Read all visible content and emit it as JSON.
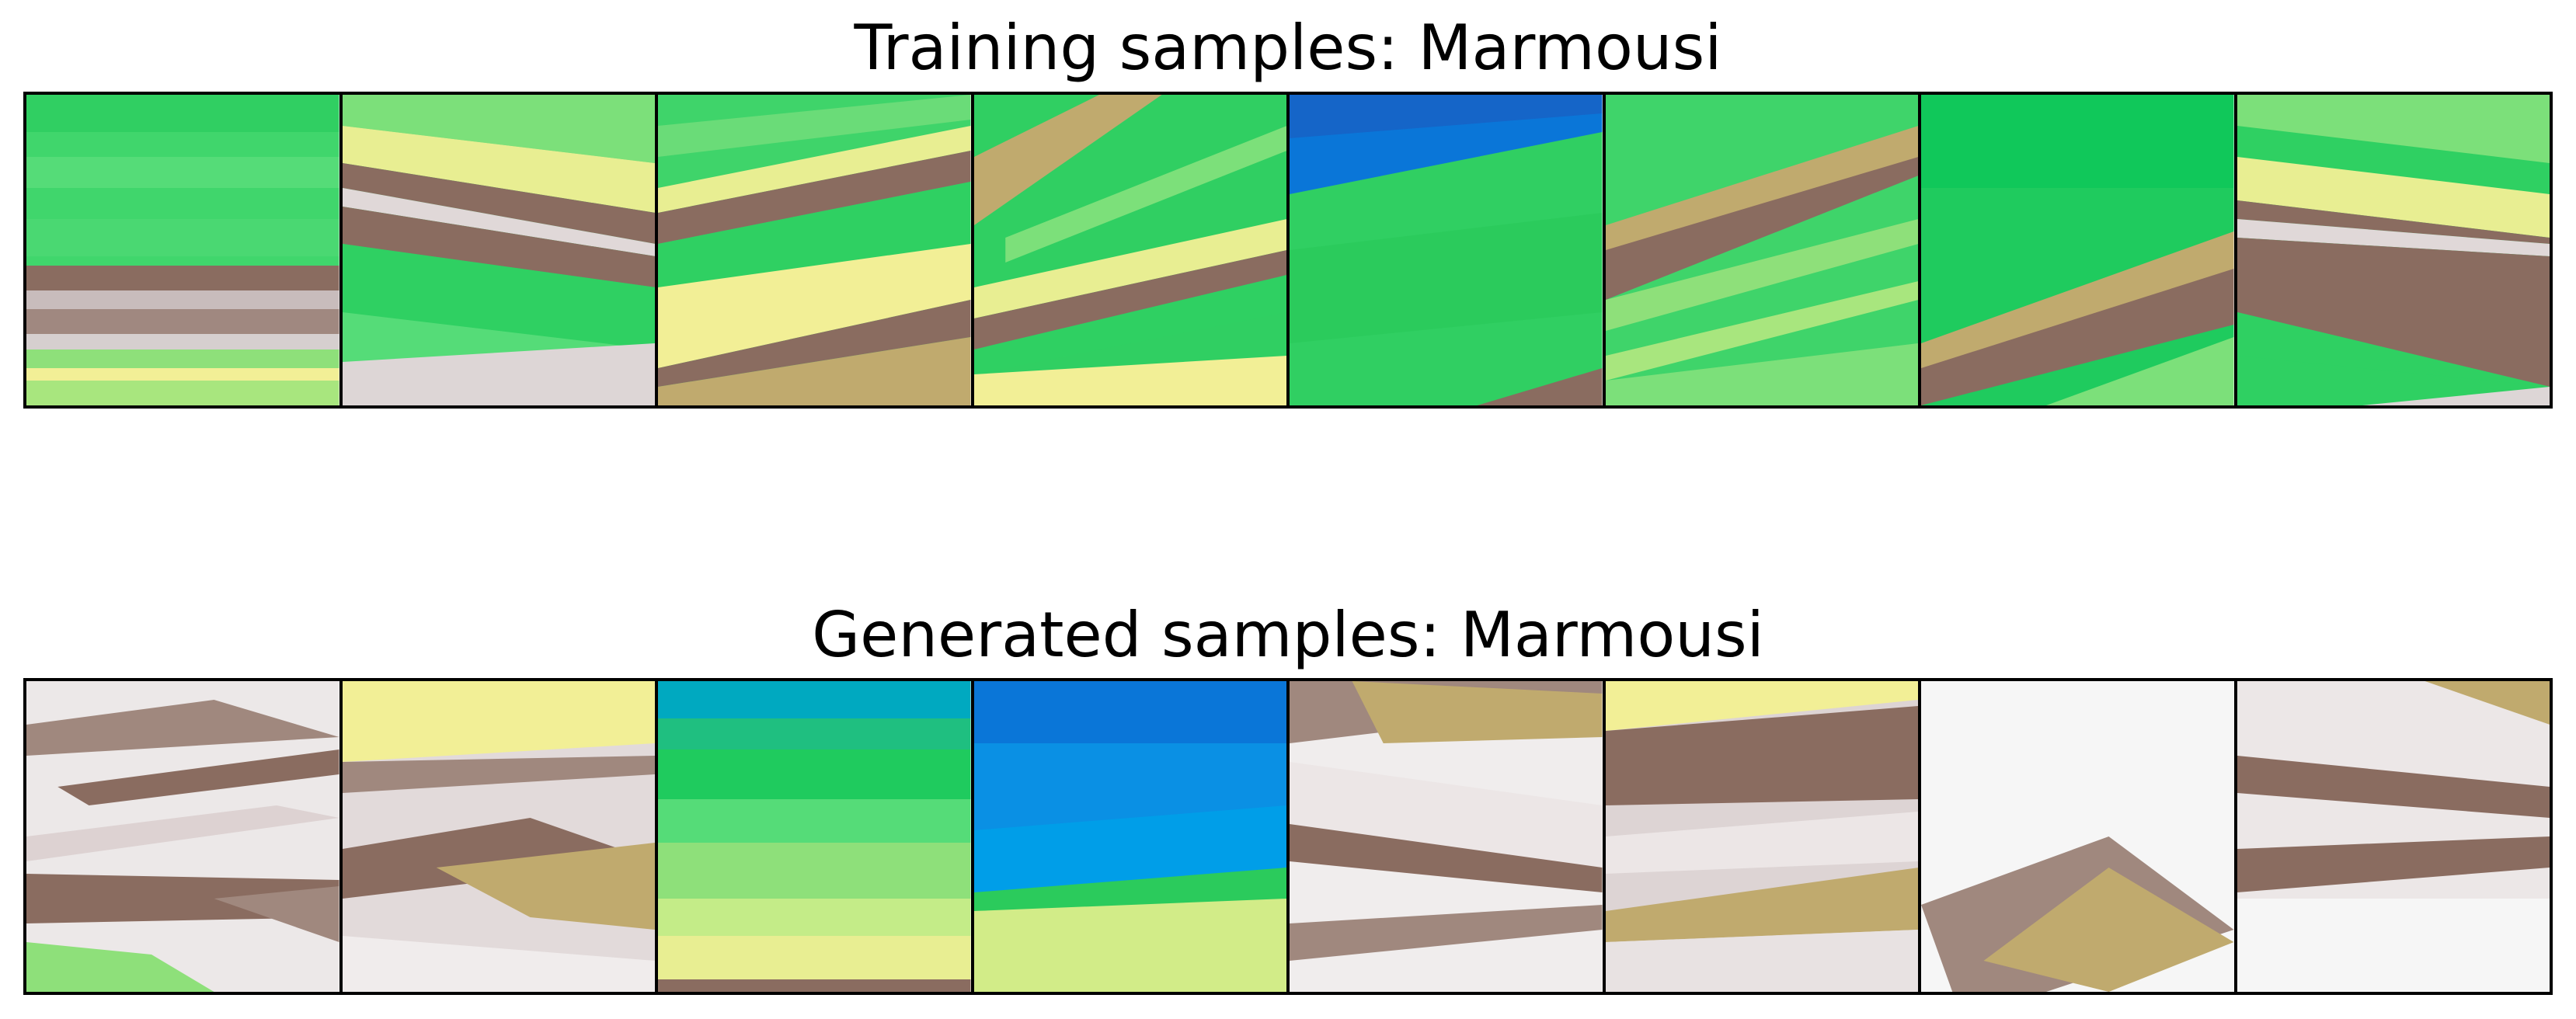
{
  "figure": {
    "training_title": "Training samples: Marmousi",
    "generated_title": "Generated samples: Marmousi"
  },
  "colors": {
    "green": "#1fcb5e",
    "light_green": "#5fdc7a",
    "yellow": "#f2ef96",
    "tan": "#c0aa6e",
    "brown": "#8a6c60",
    "pale": "#ddd6d6",
    "blue": "#0a76d8",
    "cyan": "#00a9c0",
    "white": "#f6f6f6"
  }
}
